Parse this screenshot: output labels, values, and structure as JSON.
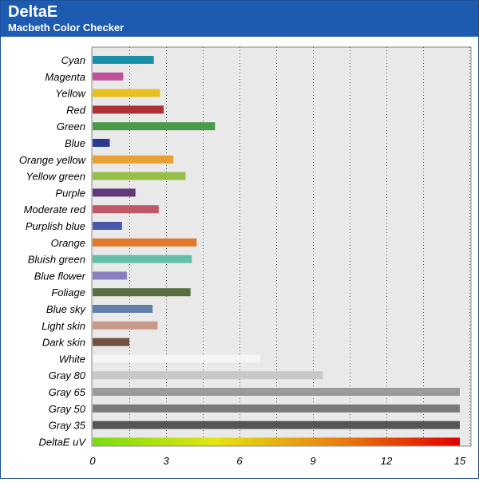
{
  "header": {
    "title": "DeltaE",
    "subtitle": "Macbeth Color Checker"
  },
  "colors": {
    "header_bg": "#1c5bb0",
    "plot_bg": "#e9e9e9"
  },
  "chart_data": {
    "type": "bar",
    "orientation": "horizontal",
    "title": "",
    "xlabel": "",
    "ylabel": "",
    "xlim": [
      0,
      15
    ],
    "xticks": [
      0,
      3,
      6,
      9,
      12,
      15
    ],
    "grid": "vertical dotted",
    "categories": [
      "Cyan",
      "Magenta",
      "Yellow",
      "Red",
      "Green",
      "Blue",
      "Orange yellow",
      "Yellow green",
      "Purple",
      "Moderate red",
      "Purplish blue",
      "Orange",
      "Bluish green",
      "Blue flower",
      "Foliage",
      "Blue sky",
      "Light skin",
      "Dark skin",
      "White",
      "Gray 80",
      "Gray 65",
      "Gray 50",
      "Gray 35",
      "DeltaE uV"
    ],
    "values": [
      2.5,
      1.25,
      2.75,
      2.9,
      5.0,
      0.7,
      3.3,
      3.8,
      1.75,
      2.7,
      1.2,
      4.25,
      4.05,
      1.4,
      4.0,
      2.45,
      2.65,
      1.5,
      6.85,
      9.4,
      15,
      15,
      15,
      15
    ],
    "bar_colors": [
      "#1a8fa8",
      "#c0509a",
      "#e8c020",
      "#b03038",
      "#4a9a4a",
      "#2a3a90",
      "#e8a030",
      "#98c048",
      "#603878",
      "#c05868",
      "#4858a8",
      "#e07828",
      "#60c0a8",
      "#8880c0",
      "#587040",
      "#6080a8",
      "#c89888",
      "#705040",
      "#f5f5f5",
      "#c8c8c8",
      "#9a9a9a",
      "#7a7a7a",
      "#555555",
      "gradient"
    ],
    "gradient_stops": [
      "#78dc10",
      "#e4e410",
      "#e88010",
      "#e00000"
    ]
  }
}
